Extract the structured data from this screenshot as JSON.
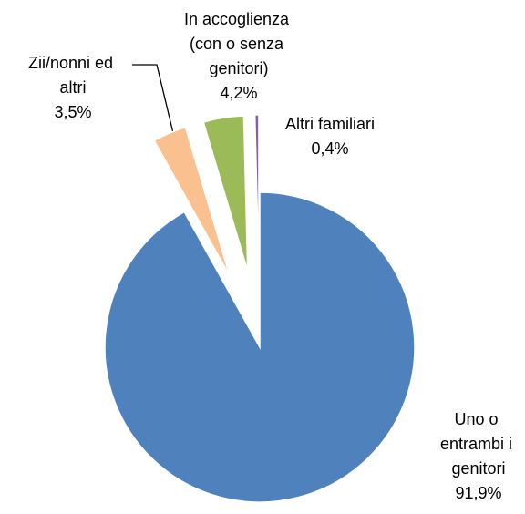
{
  "chart_data": {
    "type": "pie",
    "categories": [
      "Uno o entrambi i genitori",
      "Zii/nonni ed altri",
      "In accoglienza (con o senza genitori)",
      "Altri familiari"
    ],
    "values": [
      91.9,
      3.5,
      4.2,
      0.4
    ],
    "value_labels": [
      "91,9%",
      "3,5%",
      "4,2%",
      "0,4%"
    ],
    "colors": [
      "#4f81bd",
      "#fac090",
      "#9bbb59",
      "#8064a2"
    ]
  }
}
